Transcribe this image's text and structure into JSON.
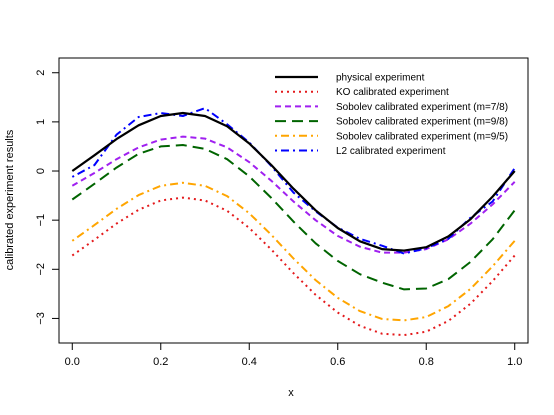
{
  "chart_data": {
    "type": "line",
    "title": "",
    "xlabel": "x",
    "ylabel": "calibrated experiment results",
    "xlim": [
      -0.03,
      1.03
    ],
    "ylim": [
      -3.5,
      2.3
    ],
    "xticks": [
      0.0,
      0.2,
      0.4,
      0.6,
      0.8,
      1.0
    ],
    "xtick_labels": [
      "0.0",
      "0.2",
      "0.4",
      "0.6",
      "0.8",
      "1.0"
    ],
    "yticks": [
      -3,
      -2,
      -1,
      0,
      1,
      2
    ],
    "ytick_labels": [
      "−3",
      "−2",
      "−1",
      "0",
      "1",
      "2"
    ],
    "grid": false,
    "legend_position": "top-right",
    "x": [
      0.0,
      0.05,
      0.1,
      0.15,
      0.2,
      0.25,
      0.3,
      0.35,
      0.4,
      0.45,
      0.5,
      0.55,
      0.6,
      0.65,
      0.7,
      0.75,
      0.8,
      0.85,
      0.9,
      0.95,
      1.0
    ],
    "series": [
      {
        "name": "physical experiment",
        "color": "#000000",
        "style": "solid",
        "values": [
          0.0,
          0.32,
          0.65,
          0.93,
          1.12,
          1.18,
          1.12,
          0.91,
          0.56,
          0.12,
          -0.36,
          -0.8,
          -1.16,
          -1.43,
          -1.59,
          -1.62,
          -1.55,
          -1.33,
          -0.98,
          -0.52,
          0.0
        ]
      },
      {
        "name": "KO calibrated experiment",
        "color": "#e41a1c",
        "style": "dotted",
        "values": [
          -1.72,
          -1.4,
          -1.07,
          -0.79,
          -0.6,
          -0.54,
          -0.6,
          -0.81,
          -1.16,
          -1.6,
          -2.08,
          -2.52,
          -2.88,
          -3.15,
          -3.31,
          -3.34,
          -3.27,
          -3.05,
          -2.7,
          -2.24,
          -1.72
        ]
      },
      {
        "name": "Sobolev calibrated experiment (m=7/8)",
        "color": "#a020f0",
        "style": "dashed",
        "values": [
          -0.3,
          -0.04,
          0.24,
          0.48,
          0.64,
          0.7,
          0.66,
          0.48,
          0.18,
          -0.2,
          -0.62,
          -1.0,
          -1.32,
          -1.54,
          -1.66,
          -1.66,
          -1.59,
          -1.39,
          -1.07,
          -0.68,
          -0.22
        ]
      },
      {
        "name": "Sobolev calibrated experiment (m=9/8)",
        "color": "#006400",
        "style": "longdash",
        "values": [
          -0.58,
          -0.26,
          0.07,
          0.35,
          0.5,
          0.53,
          0.45,
          0.24,
          -0.11,
          -0.55,
          -1.03,
          -1.47,
          -1.83,
          -2.1,
          -2.27,
          -2.41,
          -2.39,
          -2.2,
          -1.85,
          -1.39,
          -0.8
        ]
      },
      {
        "name": "Sobolev calibrated experiment (m=9/5)",
        "color": "#ffa500",
        "style": "dotdash",
        "values": [
          -1.42,
          -1.1,
          -0.77,
          -0.49,
          -0.3,
          -0.24,
          -0.3,
          -0.51,
          -0.86,
          -1.3,
          -1.78,
          -2.22,
          -2.58,
          -2.85,
          -3.01,
          -3.04,
          -2.97,
          -2.75,
          -2.4,
          -1.94,
          -1.42
        ]
      },
      {
        "name": "L2 calibrated experiment",
        "color": "#0000ff",
        "style": "dotdash",
        "values": [
          -0.12,
          0.12,
          0.74,
          1.1,
          1.18,
          1.12,
          1.28,
          0.95,
          0.58,
          0.1,
          -0.44,
          -0.82,
          -1.15,
          -1.38,
          -1.52,
          -1.68,
          -1.57,
          -1.38,
          -0.95,
          -0.62,
          0.06
        ]
      }
    ]
  }
}
